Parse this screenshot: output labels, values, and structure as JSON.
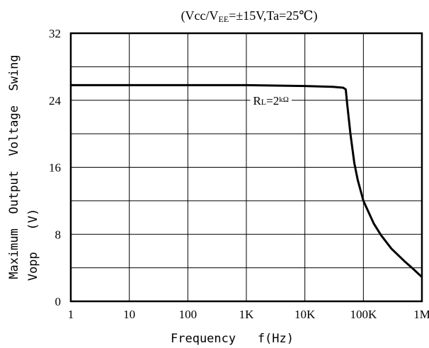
{
  "chart_data": {
    "type": "line",
    "title": "(Vcc/VEE=±15V,Ta=25℃)",
    "title_parts": {
      "pre": "(Vcc/V",
      "sub": "EE",
      "post": "=±15V,Ta=25℃)"
    },
    "xlabel": "Frequency   f(Hz)",
    "ylabel_line1": "Maximum  Output  Voltage  Swing",
    "ylabel_line2": "Vopp   (V)",
    "x_scale": "log",
    "xlim": [
      1,
      1000000
    ],
    "ylim": [
      0,
      32
    ],
    "grid": true,
    "x_ticks": [
      {
        "value": 1,
        "label": "1"
      },
      {
        "value": 10,
        "label": "10"
      },
      {
        "value": 100,
        "label": "100"
      },
      {
        "value": 1000,
        "label": "1K"
      },
      {
        "value": 10000,
        "label": "10K"
      },
      {
        "value": 100000,
        "label": "100K"
      },
      {
        "value": 1000000,
        "label": "1M"
      }
    ],
    "y_ticks": [
      {
        "value": 0,
        "label": "0"
      },
      {
        "value": 8,
        "label": "8"
      },
      {
        "value": 16,
        "label": "16"
      },
      {
        "value": 24,
        "label": "24"
      },
      {
        "value": 32,
        "label": "32"
      }
    ],
    "series": [
      {
        "name": "RL=2kΩ",
        "name_parts": {
          "pre": "R",
          "sub": "L",
          "post": "=2",
          "unit": "kΩ"
        },
        "x": [
          1,
          10,
          100,
          1000,
          10000,
          30000,
          45000,
          50000,
          53000,
          60000,
          70000,
          80000,
          100000,
          150000,
          200000,
          300000,
          500000,
          700000,
          1000000
        ],
        "y": [
          25.8,
          25.8,
          25.8,
          25.8,
          25.7,
          25.6,
          25.5,
          25.3,
          23.5,
          20.0,
          16.5,
          14.5,
          12.0,
          9.3,
          7.9,
          6.3,
          4.8,
          3.9,
          2.9
        ]
      }
    ]
  }
}
